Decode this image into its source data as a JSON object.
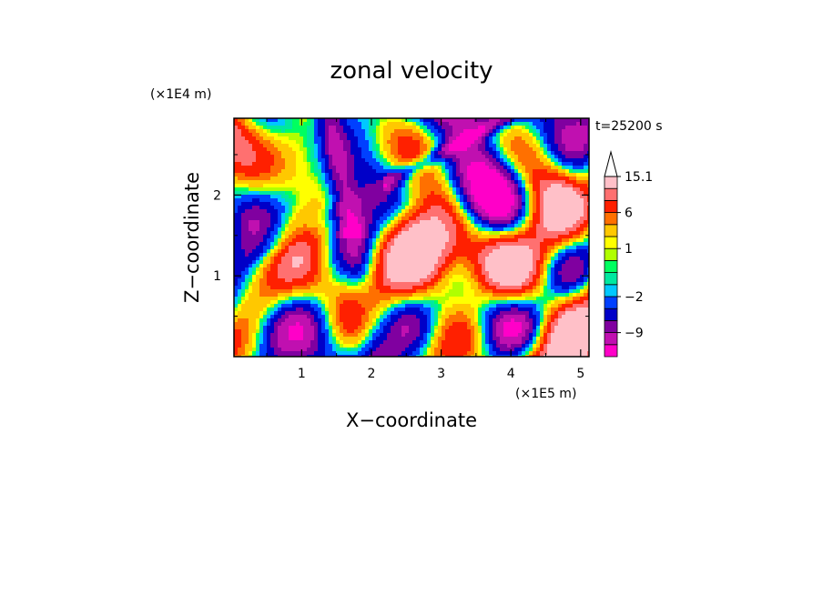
{
  "chart_data": {
    "type": "heatmap",
    "title": "zonal velocity",
    "xlabel": "X−coordinate",
    "ylabel": "Z−coordinate",
    "x_scale_label": "(×1E5 m)",
    "y_scale_label": "(×1E4 m)",
    "time_label": "t=25200 s",
    "xlim": [
      0.03,
      5.12
    ],
    "ylim": [
      0,
      2.95
    ],
    "x_ticks": [
      1,
      2,
      3,
      4,
      5
    ],
    "x_tick_labels": [
      "1",
      "2",
      "3",
      "4",
      "5"
    ],
    "y_ticks": [
      1,
      2
    ],
    "y_tick_labels": [
      "1",
      "2"
    ],
    "colorbar": {
      "levels": [
        -15.1,
        -12,
        -9,
        -6.5,
        -4,
        -2,
        -1,
        0,
        0.5,
        1,
        2,
        4,
        6,
        9,
        12,
        15.1
      ],
      "labels": [
        {
          "value": 15.1,
          "text": "15.1"
        },
        {
          "value": 6,
          "text": "6"
        },
        {
          "value": 1,
          "text": "1"
        },
        {
          "value": -2,
          "text": "−2"
        },
        {
          "value": -9,
          "text": "−9"
        }
      ],
      "colors": [
        "#ff00c8",
        "#c010b0",
        "#8000a0",
        "#0000c8",
        "#0040ff",
        "#00c8ff",
        "#00e8a0",
        "#00ff60",
        "#b0ff00",
        "#ffff00",
        "#ffc800",
        "#ff7000",
        "#ff2000",
        "#ff7070",
        "#ffc0c8"
      ],
      "extend": "max"
    },
    "field_description_note_omitted": true
  }
}
